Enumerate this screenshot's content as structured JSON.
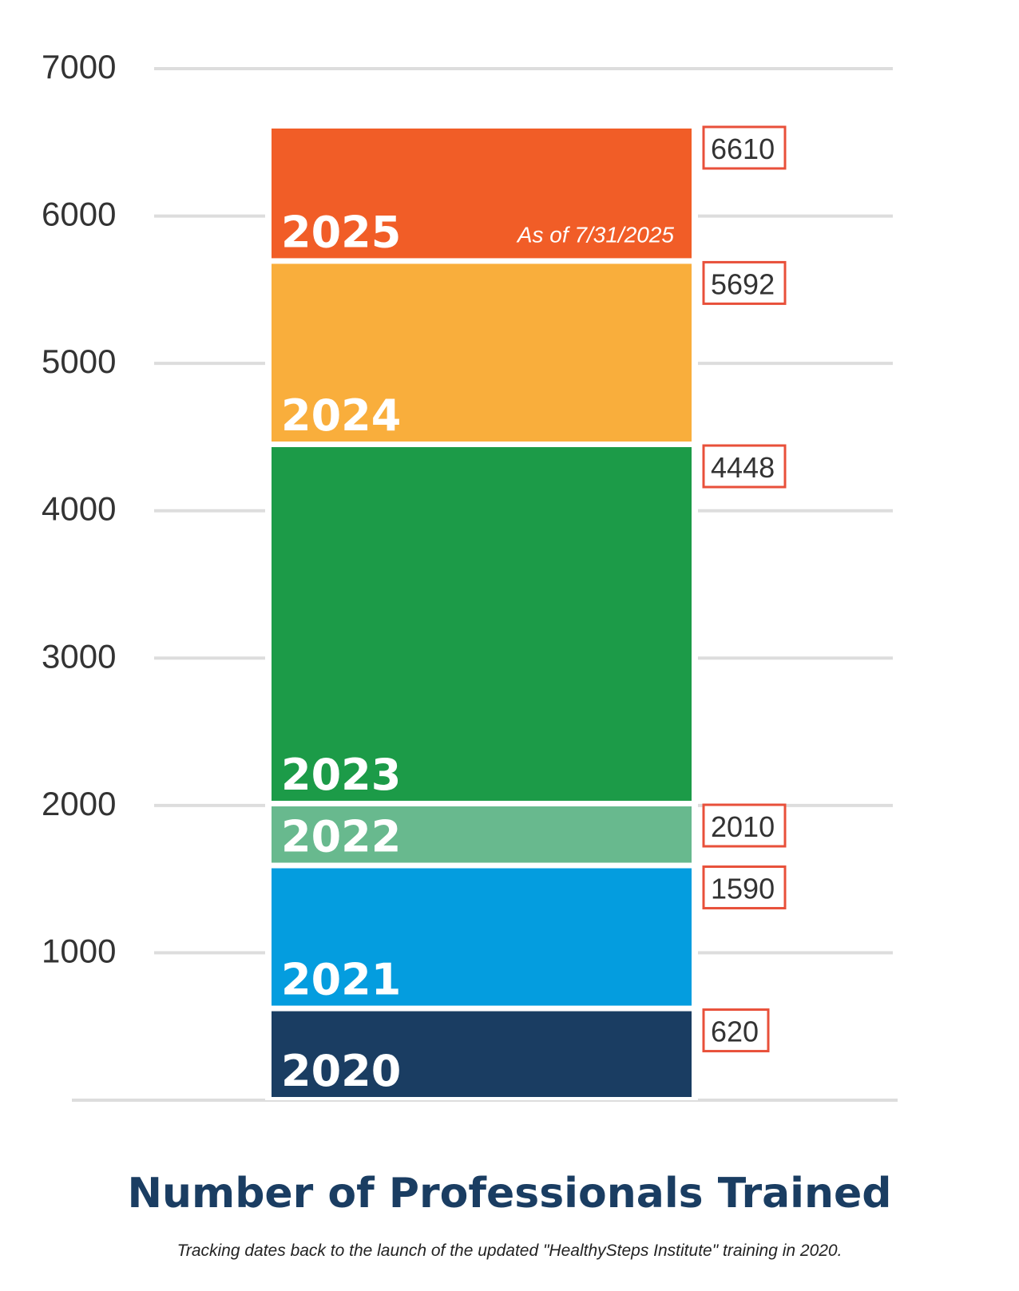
{
  "chart_data": {
    "type": "bar",
    "title": "Number of Professionals Trained",
    "subtitle": "Tracking dates back to the launch of the updated \"HealthySteps Institute\" training in 2020.",
    "ylim": [
      0,
      7000
    ],
    "y_ticks": [
      1000,
      2000,
      3000,
      4000,
      5000,
      6000,
      7000
    ],
    "y_tick_labels": [
      "1000",
      "2000",
      "3000",
      "4000",
      "5000",
      "6000",
      "7000"
    ],
    "grid": true,
    "segments": [
      {
        "year": "2020",
        "value": 620,
        "value_label": "620",
        "color": "#1a3d62"
      },
      {
        "year": "2021",
        "value": 1590,
        "value_label": "1590",
        "color": "#049ddf"
      },
      {
        "year": "2022",
        "value": 2010,
        "value_label": "2010",
        "color": "#68b98e"
      },
      {
        "year": "2023",
        "value": 4448,
        "value_label": "4448",
        "color": "#1c9b48"
      },
      {
        "year": "2024",
        "value": 5692,
        "value_label": "5692",
        "color": "#f9ae3c"
      },
      {
        "year": "2025",
        "value": 6610,
        "value_label": "6610",
        "color": "#f15d27",
        "note": "As of 7/31/2025"
      }
    ]
  }
}
